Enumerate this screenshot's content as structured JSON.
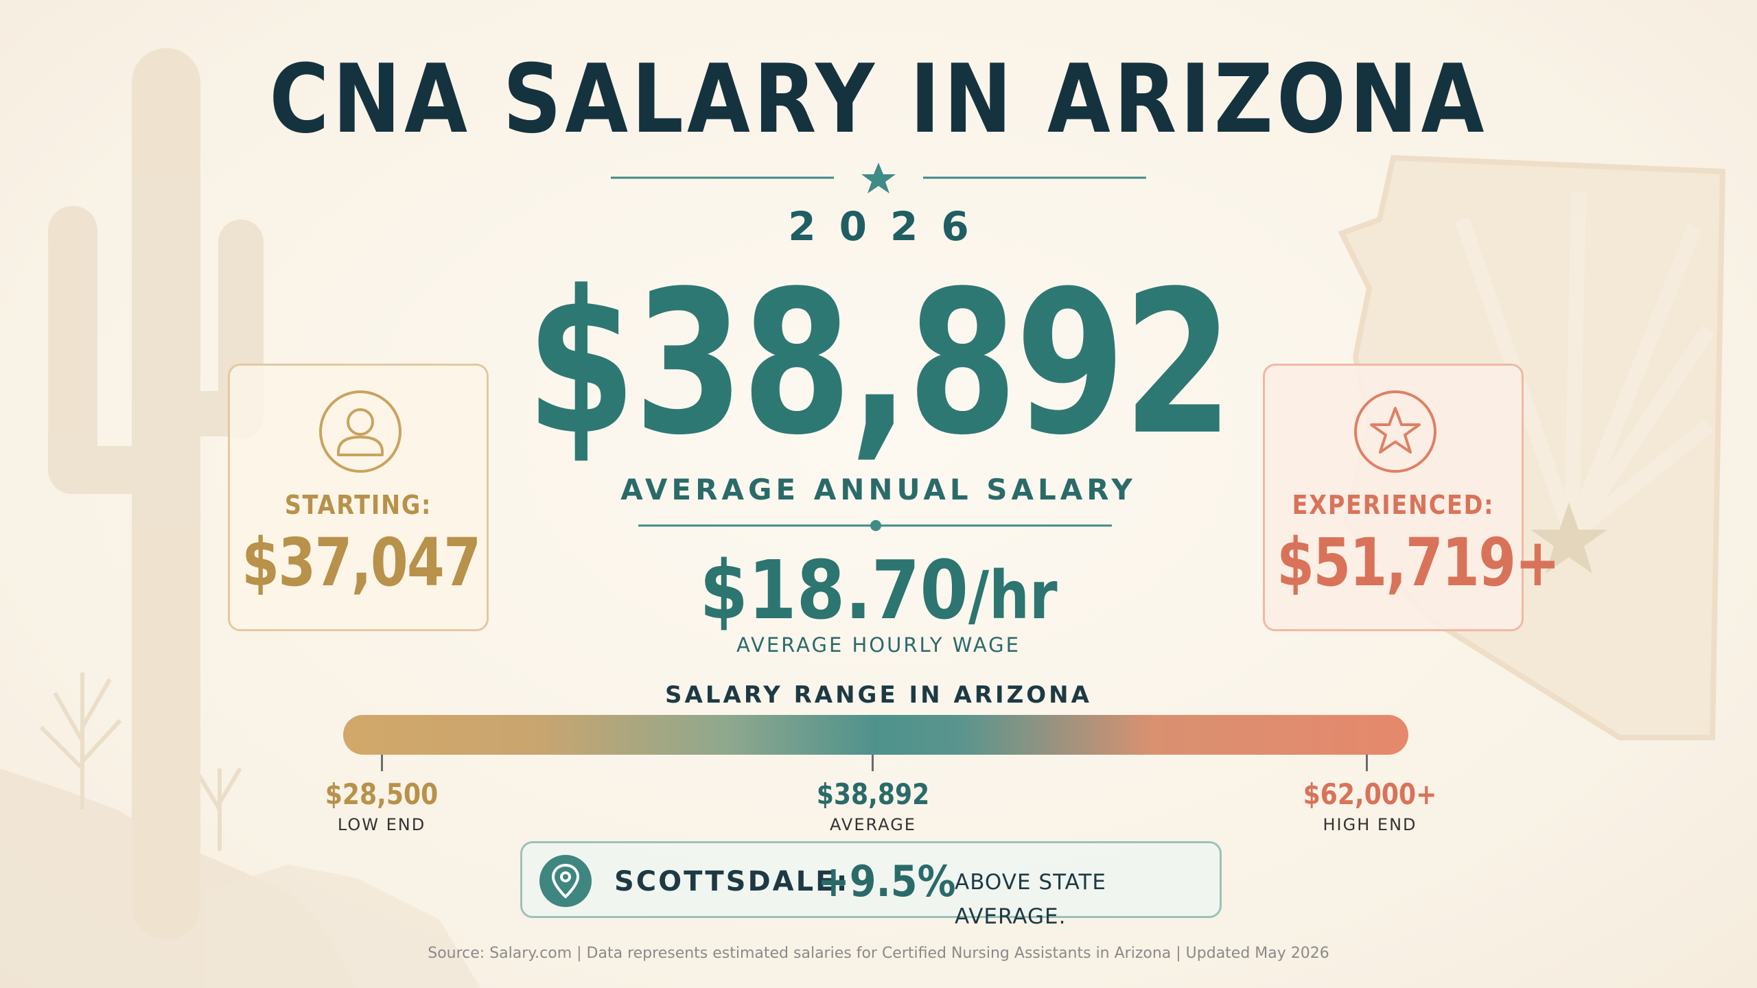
{
  "title": "CNA SALARY IN ARIZONA",
  "year": "2026",
  "average_annual": {
    "value": "$38,892",
    "caption": "AVERAGE ANNUAL SALARY"
  },
  "average_hourly": {
    "value": "$18.70",
    "unit": "/hr",
    "caption": "AVERAGE HOURLY WAGE"
  },
  "starting": {
    "icon": "person-icon",
    "label": "STARTING:",
    "value": "$37,047"
  },
  "experienced": {
    "icon": "star-icon",
    "label": "EXPERIENCED:",
    "value": "$51,719+"
  },
  "salary_range": {
    "title": "SALARY RANGE IN ARIZONA",
    "low": {
      "value": "$28,500",
      "caption": "LOW END"
    },
    "average": {
      "value": "$38,892",
      "caption": "AVERAGE"
    },
    "high": {
      "value": "$62,000+",
      "caption": "HIGH END"
    }
  },
  "callout": {
    "icon": "location-pin-icon",
    "city": "SCOTTSDALE:",
    "percent": "+9.5%",
    "text": "ABOVE STATE AVERAGE."
  },
  "source": "Source: Salary.com  |  Data represents estimated salaries for Certified Nursing Assistants in Arizona  |  Updated May 2026",
  "colors": {
    "navy": "#15323f",
    "teal": "#2e7873",
    "gold": "#b8914a",
    "coral": "#d8735a",
    "background": "#fbf6ec"
  }
}
